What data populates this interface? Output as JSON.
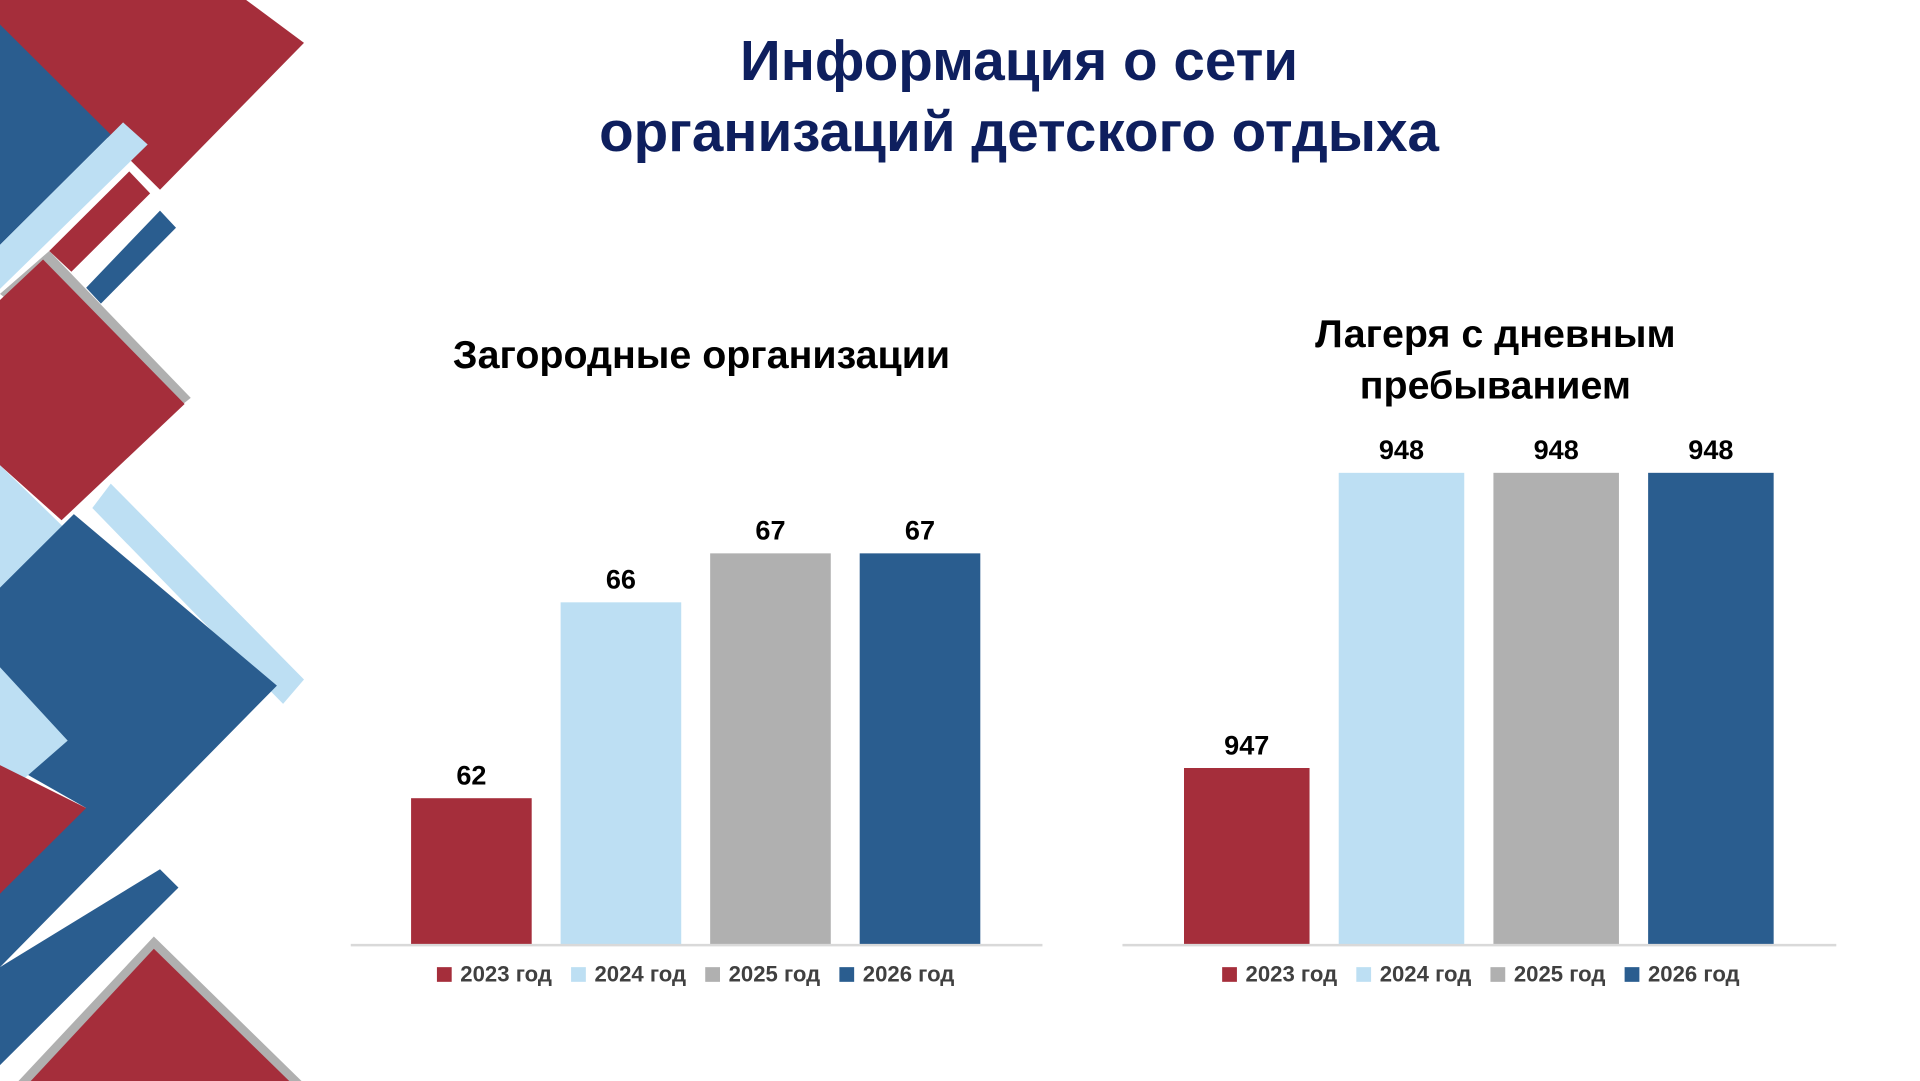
{
  "title": [
    "Информация о сети",
    "организаций детского отдыха"
  ],
  "chart_data": [
    {
      "type": "bar",
      "title": [
        "Загородные организации"
      ],
      "categories": [
        "2023 год",
        "2024 год",
        "2025 год",
        "2026 год"
      ],
      "values": [
        62,
        66,
        67,
        67
      ],
      "colors": [
        "#a52e3b",
        "#bddff3",
        "#b0b0b0",
        "#2a5d8f"
      ],
      "ylim": [
        59,
        68.5
      ],
      "legend": "bottom"
    },
    {
      "type": "bar",
      "title": [
        "Лагеря с дневным",
        "пребыванием"
      ],
      "categories": [
        "2023 год",
        "2024 год",
        "2025 год",
        "2026 год"
      ],
      "values": [
        947,
        948,
        948,
        948
      ],
      "colors": [
        "#a52e3b",
        "#bddff3",
        "#b0b0b0",
        "#2a5d8f"
      ],
      "ylim": [
        946.4,
        948.2
      ],
      "legend": "bottom"
    }
  ]
}
